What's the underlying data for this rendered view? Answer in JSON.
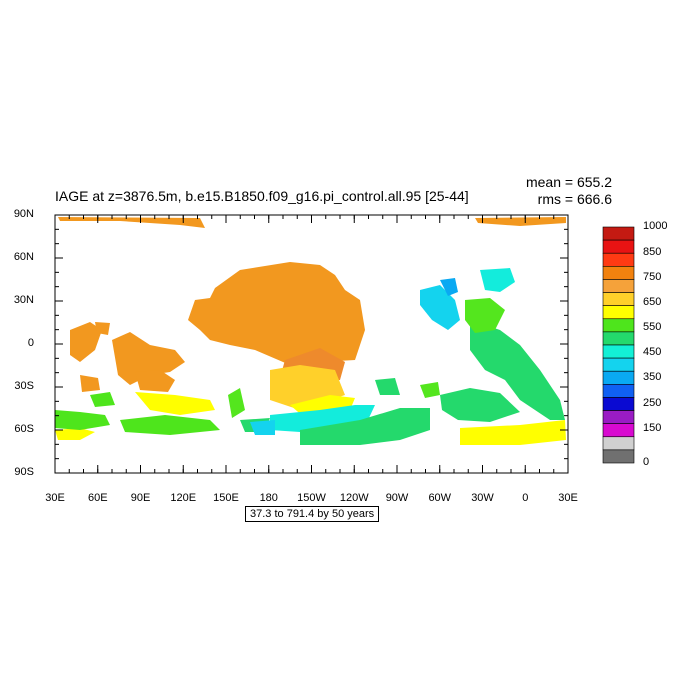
{
  "title": "IAGE at z=3876.5m, b.e15.B1850.f09_g16.pi_control.all.95 [25-44]",
  "stats": {
    "mean": "mean = 655.2",
    "rms": "rms = 666.6"
  },
  "caption": "37.3 to 791.4 by 50 years",
  "map": {
    "lat_labels": [
      "90N",
      "60N",
      "30N",
      "0",
      "30S",
      "60S",
      "90S"
    ],
    "lon_labels": [
      "30E",
      "60E",
      "90E",
      "120E",
      "150E",
      "180",
      "150W",
      "120W",
      "90W",
      "60W",
      "30W",
      "0",
      "30E"
    ]
  },
  "colorbar": {
    "labels": [
      "1000",
      "850",
      "750",
      "650",
      "550",
      "450",
      "350",
      "250",
      "150",
      "0"
    ],
    "colors": [
      "#c41a12",
      "#e81313",
      "#ff3a13",
      "#f2820f",
      "#f5a23a",
      "#ffd02a",
      "#ffff00",
      "#4ee51c",
      "#24d96c",
      "#13f0d6",
      "#14d3ee",
      "#0aa9f2",
      "#1060f2",
      "#0a0ad2",
      "#9a1cc4",
      "#d80ad0",
      "#d0d0d0",
      "#707070"
    ]
  },
  "field": {
    "colors": {
      "orange": "#f2981f",
      "dark_orange": "#ee8a2c",
      "yellow_orange": "#ffd02a",
      "yellow": "#ffff00",
      "green": "#4ee51c",
      "light_green": "#54e61e",
      "sea_green": "#24d96c",
      "aqua": "#13ecdc",
      "cyan": "#14d3ee",
      "sky": "#0aa9f2"
    }
  }
}
